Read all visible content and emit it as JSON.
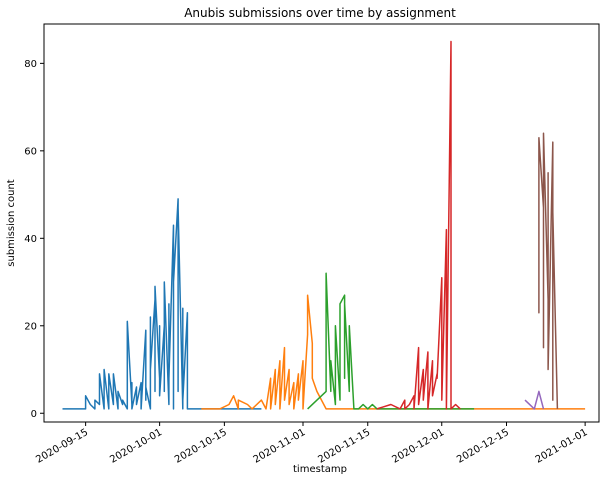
{
  "chart_data": {
    "type": "line",
    "title": "Anubis submissions over time by assignment",
    "xlabel": "timestamp",
    "ylabel": "submission count",
    "x_type": "date",
    "xlim": [
      "2020-09-06",
      "2021-01-04"
    ],
    "ylim": [
      -2,
      89
    ],
    "x_ticks": [
      "2020-09-15",
      "2020-10-01",
      "2020-10-15",
      "2020-11-01",
      "2020-11-15",
      "2020-12-01",
      "2020-12-15",
      "2021-01-01"
    ],
    "y_ticks": [
      0,
      20,
      40,
      60,
      80
    ],
    "grid": false,
    "legend": "none",
    "series": [
      {
        "color": "#1f77b4",
        "x": [
          "2020-09-10",
          "2020-09-15",
          "2020-09-15",
          "2020-09-16",
          "2020-09-17",
          "2020-09-17",
          "2020-09-18",
          "2020-09-18",
          "2020-09-19",
          "2020-09-19",
          "2020-09-20",
          "2020-09-20",
          "2020-09-21",
          "2020-09-21",
          "2020-09-22",
          "2020-09-22",
          "2020-09-23",
          "2020-09-23",
          "2020-09-24",
          "2020-09-24",
          "2020-09-25",
          "2020-09-25",
          "2020-09-25",
          "2020-09-26",
          "2020-09-26",
          "2020-09-27",
          "2020-09-27",
          "2020-09-28",
          "2020-09-28",
          "2020-09-28",
          "2020-09-29",
          "2020-09-29",
          "2020-09-29",
          "2020-09-30",
          "2020-09-30",
          "2020-09-30",
          "2020-10-01",
          "2020-10-01",
          "2020-10-01",
          "2020-10-02",
          "2020-10-02",
          "2020-10-02",
          "2020-10-03",
          "2020-10-03",
          "2020-10-03",
          "2020-10-04",
          "2020-10-04",
          "2020-10-04",
          "2020-10-05",
          "2020-10-05",
          "2020-10-05",
          "2020-10-06",
          "2020-10-06",
          "2020-10-06",
          "2020-10-07",
          "2020-10-07",
          "2020-10-08",
          "2020-10-23"
        ],
        "y": [
          1,
          1,
          4,
          2,
          1,
          3,
          2,
          9,
          1,
          10,
          1,
          9,
          2,
          9,
          1,
          5,
          2,
          3,
          1,
          21,
          2,
          7,
          1,
          6,
          2,
          7,
          1,
          19,
          3,
          6,
          1,
          22,
          10,
          26,
          5,
          29,
          8,
          20,
          4,
          20,
          5,
          30,
          2,
          25,
          8,
          43,
          1,
          30,
          49,
          5,
          47,
          1,
          24,
          3,
          23,
          1,
          1,
          1
        ]
      },
      {
        "color": "#ff7f0e",
        "x": [
          "2020-10-10",
          "2020-10-14",
          "2020-10-16",
          "2020-10-17",
          "2020-10-18",
          "2020-10-18",
          "2020-10-20",
          "2020-10-21",
          "2020-10-23",
          "2020-10-24",
          "2020-10-25",
          "2020-10-25",
          "2020-10-26",
          "2020-10-26",
          "2020-10-27",
          "2020-10-27",
          "2020-10-28",
          "2020-10-28",
          "2020-10-29",
          "2020-10-29",
          "2020-10-30",
          "2020-10-30",
          "2020-10-31",
          "2020-10-31",
          "2020-11-01",
          "2020-11-01",
          "2020-11-02",
          "2020-11-02",
          "2020-11-03",
          "2020-11-03",
          "2020-11-04",
          "2020-11-05",
          "2020-11-06",
          "2020-11-10",
          "2020-12-20",
          "2021-01-01"
        ],
        "y": [
          1,
          1,
          2,
          4,
          1,
          3,
          2,
          1,
          3,
          1,
          8,
          1,
          10,
          2,
          12,
          1,
          15,
          3,
          10,
          2,
          7,
          1,
          9,
          3,
          12,
          1,
          18,
          27,
          16,
          8,
          5,
          3,
          1,
          1,
          1,
          1
        ]
      },
      {
        "color": "#2ca02c",
        "x": [
          "2020-11-02",
          "2020-11-06",
          "2020-11-06",
          "2020-11-07",
          "2020-11-07",
          "2020-11-08",
          "2020-11-08",
          "2020-11-09",
          "2020-11-09",
          "2020-11-10",
          "2020-11-10",
          "2020-11-10",
          "2020-11-11",
          "2020-11-11",
          "2020-11-12",
          "2020-11-13",
          "2020-11-14",
          "2020-11-15",
          "2020-11-16",
          "2020-11-17",
          "2020-11-20",
          "2020-12-08"
        ],
        "y": [
          1,
          5,
          32,
          5,
          12,
          2,
          20,
          3,
          25,
          27,
          8,
          25,
          5,
          20,
          1,
          1,
          2,
          1,
          2,
          1,
          1,
          1
        ]
      },
      {
        "color": "#d62728",
        "x": [
          "2020-11-17",
          "2020-11-20",
          "2020-11-22",
          "2020-11-23",
          "2020-11-23",
          "2020-11-24",
          "2020-11-25",
          "2020-11-25",
          "2020-11-26",
          "2020-11-26",
          "2020-11-27",
          "2020-11-27",
          "2020-11-28",
          "2020-11-28",
          "2020-11-29",
          "2020-11-29",
          "2020-11-30",
          "2020-11-30",
          "2020-12-01",
          "2020-12-01",
          "2020-12-02",
          "2020-12-02",
          "2020-12-03",
          "2020-12-03",
          "2020-12-04",
          "2020-12-05"
        ],
        "y": [
          1,
          2,
          1,
          3,
          1,
          2,
          4,
          1,
          15,
          2,
          10,
          3,
          14,
          1,
          12,
          4,
          9,
          8,
          31,
          3,
          42,
          1,
          85,
          1,
          2,
          1
        ]
      },
      {
        "color": "#9467bd",
        "x": [
          "2020-12-19",
          "2020-12-21",
          "2020-12-22",
          "2020-12-23"
        ],
        "y": [
          3,
          1,
          5,
          1
        ]
      },
      {
        "color": "#8c564b",
        "x": [
          "2020-12-22",
          "2020-12-22",
          "2020-12-22",
          "2020-12-23",
          "2020-12-23",
          "2020-12-23",
          "2020-12-24",
          "2020-12-24",
          "2020-12-24",
          "2020-12-25",
          "2020-12-25",
          "2020-12-25",
          "2020-12-26"
        ],
        "y": [
          53,
          23,
          63,
          47,
          15,
          64,
          26,
          55,
          10,
          62,
          3,
          46,
          1
        ]
      }
    ]
  }
}
